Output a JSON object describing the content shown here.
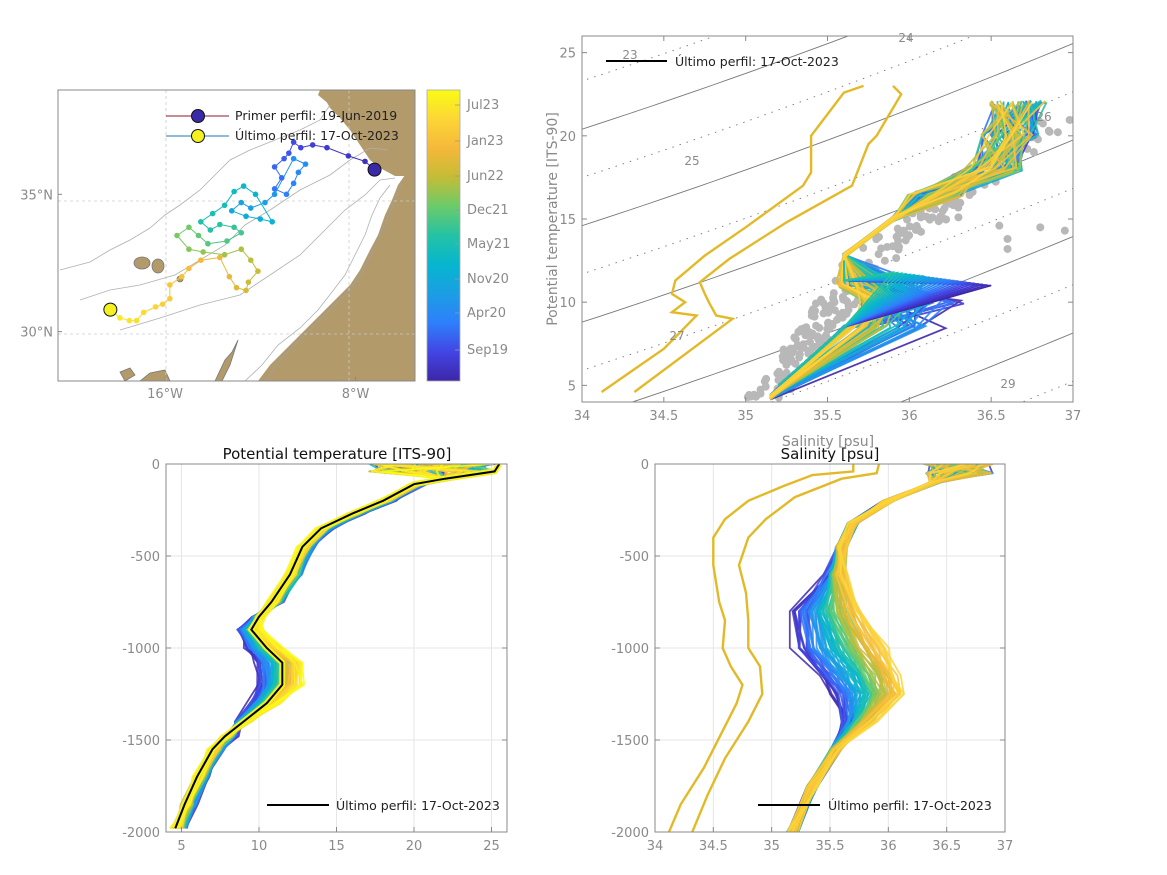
{
  "chart_data": [
    {
      "id": "map",
      "type": "scatter",
      "title": "",
      "xlabel": "",
      "ylabel": "",
      "xlim": [
        -20.5,
        -5.5
      ],
      "ylim": [
        28.2,
        38.8
      ],
      "xticks": [
        {
          "v": -16,
          "label": "16°W"
        },
        {
          "v": -8,
          "label": "8°W"
        }
      ],
      "yticks": [
        {
          "v": 35,
          "label": "35°N"
        },
        {
          "v": 30,
          "label": "30°N"
        }
      ],
      "legend": {
        "placement": "top-center",
        "entries": [
          {
            "label": "Primer perfil: 19-Jun-2019",
            "marker_color": "#3a2aa8",
            "line_color": "#8b1a2e"
          },
          {
            "label": "Último perfil: 17-Oct-2023",
            "marker_color": "#f5f020",
            "line_color": "#1f77b4"
          }
        ]
      },
      "land_color": "#b39a6a",
      "track": {
        "start": {
          "lon": -7.2,
          "lat": 35.9
        },
        "end": {
          "lon": -18.3,
          "lat": 30.8
        },
        "points": [
          [
            -7.2,
            35.9
          ],
          [
            -7.6,
            36.2
          ],
          [
            -8.3,
            36.4
          ],
          [
            -9.2,
            36.7
          ],
          [
            -9.8,
            36.8
          ],
          [
            -10.3,
            36.7
          ],
          [
            -10.6,
            36.9
          ],
          [
            -10.8,
            36.5
          ],
          [
            -11.0,
            36.3
          ],
          [
            -11.4,
            36.0
          ],
          [
            -11.1,
            35.6
          ],
          [
            -11.4,
            35.2
          ],
          [
            -10.9,
            35.0
          ],
          [
            -10.6,
            35.4
          ],
          [
            -10.4,
            35.8
          ],
          [
            -10.1,
            36.1
          ],
          [
            -10.6,
            36.3
          ],
          [
            -11.4,
            35.0
          ],
          [
            -11.8,
            34.7
          ],
          [
            -12.4,
            34.5
          ],
          [
            -12.8,
            34.7
          ],
          [
            -13.2,
            34.4
          ],
          [
            -12.6,
            34.2
          ],
          [
            -12.0,
            34.1
          ],
          [
            -11.5,
            34.0
          ],
          [
            -12.2,
            35.0
          ],
          [
            -12.7,
            35.3
          ],
          [
            -13.1,
            35.1
          ],
          [
            -13.5,
            34.6
          ],
          [
            -14.0,
            34.3
          ],
          [
            -14.5,
            34.0
          ],
          [
            -14.1,
            33.7
          ],
          [
            -13.7,
            33.9
          ],
          [
            -13.1,
            33.8
          ],
          [
            -12.8,
            33.6
          ],
          [
            -13.4,
            33.3
          ],
          [
            -14.2,
            33.2
          ],
          [
            -14.6,
            33.5
          ],
          [
            -15.0,
            33.8
          ],
          [
            -15.5,
            33.5
          ],
          [
            -15.0,
            33.0
          ],
          [
            -14.4,
            32.9
          ],
          [
            -13.5,
            32.8
          ],
          [
            -12.8,
            33.0
          ],
          [
            -12.4,
            32.6
          ],
          [
            -12.1,
            32.2
          ],
          [
            -12.5,
            31.8
          ],
          [
            -12.6,
            31.5
          ],
          [
            -13.0,
            31.6
          ],
          [
            -13.3,
            32.0
          ],
          [
            -13.7,
            32.7
          ],
          [
            -14.5,
            32.6
          ],
          [
            -15.0,
            32.3
          ],
          [
            -15.3,
            32.0
          ],
          [
            -15.8,
            31.7
          ],
          [
            -15.8,
            31.2
          ],
          [
            -16.1,
            31.0
          ],
          [
            -16.4,
            30.9
          ],
          [
            -16.9,
            30.7
          ],
          [
            -17.2,
            30.4
          ],
          [
            -17.5,
            30.4
          ],
          [
            -17.9,
            30.5
          ],
          [
            -18.3,
            30.8
          ]
        ]
      },
      "colorbar": {
        "ticks": [
          "Jul23",
          "Jan23",
          "Jun22",
          "Dec21",
          "May21",
          "Nov20",
          "Apr20",
          "Sep19"
        ],
        "colormap": [
          "#3e26a8",
          "#4245e4",
          "#2e7ffc",
          "#1b9ee3",
          "#06b6cf",
          "#24c2a5",
          "#6bcb6b",
          "#c4bc36",
          "#f5b83a",
          "#fcd636",
          "#f9fb14"
        ]
      }
    },
    {
      "id": "ts-diagram",
      "type": "line",
      "title": "",
      "xlabel": "Salinity [psu]",
      "ylabel": "Potential temperature [ITS-90]",
      "xlim": [
        34,
        37
      ],
      "ylim": [
        4,
        26
      ],
      "xticks": [
        34,
        34.5,
        35,
        35.5,
        36,
        36.5,
        37
      ],
      "yticks": [
        5,
        10,
        15,
        20,
        25
      ],
      "isopycnal_labels": [
        "23",
        "24",
        "25",
        "26",
        "27",
        "29"
      ],
      "legend": {
        "placement": "top-left",
        "label": "Último perfil: 17-Oct-2023",
        "color": "#000000"
      },
      "reference_points_color": "#b8b8b8",
      "outlier_profiles": [
        {
          "name": "outlier-1",
          "color": "#e3b928",
          "points": [
            [
              34.12,
              4.6
            ],
            [
              34.5,
              7.2
            ],
            [
              34.7,
              9.2
            ],
            [
              34.55,
              9.4
            ],
            [
              34.63,
              10.0
            ],
            [
              34.55,
              10.5
            ],
            [
              34.57,
              11.3
            ],
            [
              34.75,
              12.8
            ],
            [
              35.0,
              14.5
            ],
            [
              35.35,
              17.0
            ],
            [
              35.4,
              17.8
            ],
            [
              35.4,
              20.0
            ],
            [
              35.6,
              22.6
            ],
            [
              35.72,
              23.0
            ]
          ]
        },
        {
          "name": "outlier-2",
          "color": "#e3b928",
          "points": [
            [
              34.32,
              4.6
            ],
            [
              34.92,
              9.0
            ],
            [
              34.82,
              9.2
            ],
            [
              34.78,
              9.9
            ],
            [
              34.75,
              10.5
            ],
            [
              34.72,
              11.2
            ],
            [
              34.9,
              12.6
            ],
            [
              35.25,
              14.8
            ],
            [
              35.65,
              17.0
            ],
            [
              35.75,
              19.5
            ],
            [
              35.8,
              20.0
            ],
            [
              35.95,
              22.5
            ],
            [
              35.9,
              23.0
            ]
          ]
        }
      ],
      "cluster_profiles": {
        "deep_branch": [
          [
            35.15,
            4.3
          ],
          [
            35.6,
            8.5
          ],
          [
            35.7,
            10.0
          ],
          [
            35.55,
            11.0
          ],
          [
            35.6,
            12.8
          ],
          [
            35.9,
            15.0
          ],
          [
            36.2,
            16.5
          ],
          [
            36.55,
            18.0
          ],
          [
            36.65,
            20.0
          ],
          [
            36.7,
            22.0
          ]
        ],
        "med_water_tip": [
          [
            36.4,
            11.5
          ],
          [
            36.5,
            12.0
          ]
        ],
        "color_order": [
          "#3e26a8",
          "#2e7ffc",
          "#06b6cf",
          "#24c2a5",
          "#6bcb6b",
          "#c4bc36",
          "#e3b928"
        ]
      }
    },
    {
      "id": "temperature-profiles",
      "type": "line",
      "title": "Potential temperature [ITS-90]",
      "xlabel": "",
      "ylabel": "",
      "xlim": [
        4,
        26
      ],
      "ylim": [
        -2000,
        0
      ],
      "xticks": [
        5,
        10,
        15,
        20,
        25
      ],
      "yticks": [
        0,
        -500,
        -1000,
        -1500,
        -2000
      ],
      "grid": true,
      "legend": {
        "placement": "bottom-right",
        "label": "Último perfil: 17-Oct-2023",
        "color": "#000000"
      },
      "last_profile": [
        [
          25.5,
          0
        ],
        [
          25.2,
          -40
        ],
        [
          22,
          -80
        ],
        [
          20,
          -110
        ],
        [
          18,
          -200
        ],
        [
          16,
          -270
        ],
        [
          14,
          -350
        ],
        [
          12.8,
          -450
        ],
        [
          12,
          -600
        ],
        [
          10.8,
          -750
        ],
        [
          10.0,
          -830
        ],
        [
          9.5,
          -900
        ],
        [
          10.5,
          -1000
        ],
        [
          11.5,
          -1080
        ],
        [
          11.5,
          -1200
        ],
        [
          10.5,
          -1300
        ],
        [
          9,
          -1400
        ],
        [
          7.8,
          -1480
        ],
        [
          7,
          -1550
        ],
        [
          6,
          -1700
        ],
        [
          5.2,
          -1850
        ],
        [
          4.6,
          -1980
        ]
      ]
    },
    {
      "id": "salinity-profiles",
      "type": "line",
      "title": "Salinity [psu]",
      "xlabel": "",
      "ylabel": "",
      "xlim": [
        34,
        37
      ],
      "ylim": [
        -2000,
        0
      ],
      "xticks": [
        34,
        34.5,
        35,
        35.5,
        36,
        36.5,
        37
      ],
      "yticks": [
        0,
        -500,
        -1000,
        -1500,
        -2000
      ],
      "grid": true,
      "legend": {
        "placement": "bottom-right",
        "label": "Último perfil: 17-Oct-2023",
        "color": "#000000"
      },
      "outlier_profiles": [
        {
          "name": "outlier-1",
          "color": "#e3b928",
          "points": [
            [
              35.7,
              0
            ],
            [
              35.7,
              -40
            ],
            [
              35.35,
              -60
            ],
            [
              35.1,
              -120
            ],
            [
              34.8,
              -200
            ],
            [
              34.6,
              -300
            ],
            [
              34.5,
              -400
            ],
            [
              34.5,
              -550
            ],
            [
              34.55,
              -750
            ],
            [
              34.6,
              -850
            ],
            [
              34.58,
              -1000
            ],
            [
              34.65,
              -1100
            ],
            [
              34.75,
              -1200
            ],
            [
              34.7,
              -1300
            ],
            [
              34.58,
              -1450
            ],
            [
              34.42,
              -1650
            ],
            [
              34.22,
              -1850
            ],
            [
              34.12,
              -2000
            ]
          ]
        },
        {
          "name": "outlier-2",
          "color": "#e3b928",
          "points": [
            [
              35.92,
              0
            ],
            [
              35.9,
              -50
            ],
            [
              35.6,
              -80
            ],
            [
              35.2,
              -180
            ],
            [
              34.95,
              -300
            ],
            [
              34.8,
              -400
            ],
            [
              34.72,
              -550
            ],
            [
              34.78,
              -700
            ],
            [
              34.8,
              -850
            ],
            [
              34.8,
              -1000
            ],
            [
              34.9,
              -1100
            ],
            [
              34.92,
              -1250
            ],
            [
              34.8,
              -1400
            ],
            [
              34.6,
              -1600
            ],
            [
              34.45,
              -1800
            ],
            [
              34.32,
              -2000
            ]
          ]
        }
      ],
      "cluster_profile": [
        [
          36.9,
          0
        ],
        [
          36.8,
          -50
        ],
        [
          36.4,
          -100
        ],
        [
          36.0,
          -200
        ],
        [
          35.7,
          -320
        ],
        [
          35.6,
          -450
        ],
        [
          35.58,
          -600
        ],
        [
          35.6,
          -800
        ],
        [
          35.75,
          -1000
        ],
        [
          35.9,
          -1150
        ],
        [
          35.95,
          -1250
        ],
        [
          35.8,
          -1400
        ],
        [
          35.55,
          -1550
        ],
        [
          35.35,
          -1750
        ],
        [
          35.18,
          -2000
        ]
      ]
    }
  ]
}
